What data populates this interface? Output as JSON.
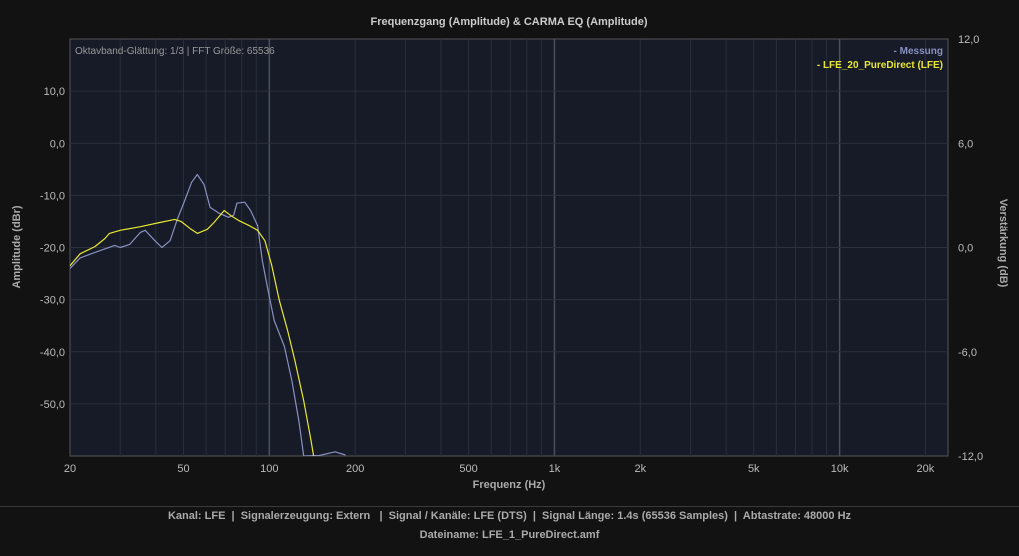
{
  "chart_data": {
    "type": "line",
    "title": "Frequenzgang (Amplitude) & CARMA EQ (Amplitude)",
    "annotation": "Oktavband-Glättung: 1/3 | FFT Größe: 65536",
    "xlabel": "Frequenz (Hz)",
    "ylabel": "Amplitude (dBr)",
    "y2label": "Verstärkung (dB)",
    "xscale": "log",
    "xlim": [
      20,
      24000
    ],
    "ylim": [
      -60,
      20
    ],
    "y2lim": [
      -12,
      12
    ],
    "grid": true,
    "legend_position": "top-right",
    "x_ticks": [
      20,
      50,
      100,
      200,
      500,
      1000,
      2000,
      5000,
      10000,
      20000
    ],
    "x_tick_labels": [
      "20",
      "50",
      "100",
      "200",
      "500",
      "1k",
      "2k",
      "5k",
      "10k",
      "20k"
    ],
    "y_ticks": [
      10,
      0,
      -10,
      -20,
      -30,
      -40,
      -50
    ],
    "y_tick_labels": [
      "10,0",
      "0,0",
      "-10,0",
      "-20,0",
      "-30,0",
      "-40,0",
      "-50,0"
    ],
    "y2_ticks": [
      12,
      6,
      0,
      -6,
      -12
    ],
    "y2_tick_labels": [
      "12,0",
      "6,0",
      "0,0",
      "-6,0",
      "-12,0"
    ],
    "series": [
      {
        "name": "- Messung",
        "color": "#8a90c0",
        "x": [
          20,
          21.7,
          25.5,
          28.7,
          30,
          32.4,
          35.3,
          36.7,
          39.7,
          42,
          44.9,
          47.4,
          50.5,
          53.4,
          55.9,
          59,
          62,
          67,
          72,
          75,
          77,
          82,
          86,
          91,
          94.5,
          99,
          104,
          113,
          120,
          127,
          132,
          150,
          170,
          185
        ],
        "y": [
          -24,
          -22,
          -20.6,
          -19.6,
          -20,
          -19.4,
          -17.1,
          -16.7,
          -18.7,
          -20,
          -18.7,
          -14.8,
          -11,
          -7.5,
          -6,
          -7.9,
          -12.3,
          -13.5,
          -14.2,
          -13.8,
          -11.5,
          -11.3,
          -12.9,
          -15.8,
          -22.5,
          -28.3,
          -34,
          -39,
          -45.6,
          -53.3,
          -60,
          -59.9,
          -59.2,
          -59.8
        ]
      },
      {
        "name": "- LFE_20_PureDirect (LFE)",
        "color": "#e8e830",
        "x": [
          20,
          21.7,
          24.5,
          26.5,
          27.5,
          30,
          35.3,
          41.3,
          46.6,
          49,
          52.6,
          55.9,
          60.6,
          64,
          69.5,
          73,
          78,
          85,
          91,
          96.5,
          102,
          108.5,
          116,
          123,
          132,
          140,
          143
        ],
        "y": [
          -23.5,
          -21.2,
          -19.8,
          -18.3,
          -17.3,
          -16.7,
          -16,
          -15.2,
          -14.6,
          -15,
          -16.3,
          -17.3,
          -16.5,
          -15.2,
          -12.9,
          -13.8,
          -14.8,
          -15.8,
          -16.7,
          -18.7,
          -23.5,
          -30.2,
          -36,
          -41.7,
          -49.4,
          -57,
          -60
        ]
      }
    ]
  },
  "footer": {
    "line1": "Kanal: LFE  |  Signalerzeugung: Extern   |  Signal / Kanäle: LFE (DTS)  |  Signal Länge: 1.4s (65536 Samples)  |  Abtastrate: 48000 Hz",
    "line2": "Dateiname: LFE_1_PureDirect.amf"
  }
}
